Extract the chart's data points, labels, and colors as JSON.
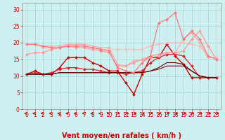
{
  "xlabel": "Vent moyen/en rafales ( km/h )",
  "background_color": "#cff0f0",
  "grid_color": "#a8d8d8",
  "x_ticks": [
    0,
    1,
    2,
    3,
    4,
    5,
    6,
    7,
    8,
    9,
    10,
    11,
    12,
    13,
    14,
    15,
    16,
    17,
    18,
    19,
    20,
    21,
    22,
    23
  ],
  "ylim": [
    0,
    32
  ],
  "xlim": [
    -0.5,
    23.5
  ],
  "yticks": [
    0,
    5,
    10,
    15,
    20,
    25,
    30
  ],
  "series": [
    {
      "x": [
        0,
        1,
        2,
        3,
        4,
        5,
        6,
        7,
        8,
        9,
        10,
        11,
        12,
        13,
        14,
        15,
        16,
        17,
        18,
        19,
        20,
        21,
        22,
        23
      ],
      "y": [
        10.5,
        11.5,
        10.5,
        10.5,
        12.5,
        15.5,
        15.5,
        15.5,
        14,
        13,
        11.5,
        11.5,
        8,
        4.5,
        10.5,
        15.5,
        15.5,
        19.5,
        16,
        13.5,
        9.5,
        9.5,
        9.5,
        9.5
      ],
      "color": "#cc0000",
      "marker": "D",
      "markersize": 2.0,
      "linewidth": 1.0
    },
    {
      "x": [
        0,
        1,
        2,
        3,
        4,
        5,
        6,
        7,
        8,
        9,
        10,
        11,
        12,
        13,
        14,
        15,
        16,
        17,
        18,
        19,
        20,
        21,
        22,
        23
      ],
      "y": [
        10.5,
        11,
        10.5,
        11,
        12,
        12.5,
        12.5,
        12,
        12,
        11.5,
        11,
        11,
        10.5,
        11,
        11.5,
        14,
        15.5,
        16.5,
        16.5,
        16,
        13,
        9.5,
        9.5,
        9.5
      ],
      "color": "#dd2222",
      "marker": "D",
      "markersize": 2.0,
      "linewidth": 0.9
    },
    {
      "x": [
        0,
        1,
        2,
        3,
        4,
        5,
        6,
        7,
        8,
        9,
        10,
        11,
        12,
        13,
        14,
        15,
        16,
        17,
        18,
        19,
        20,
        21,
        22,
        23
      ],
      "y": [
        10.5,
        10.5,
        10.5,
        10.5,
        11,
        11,
        11,
        11,
        11,
        11,
        11,
        11,
        11,
        11,
        11,
        11.5,
        12,
        13,
        13,
        13,
        11.5,
        10,
        9.5,
        9.5
      ],
      "color": "#880000",
      "marker": null,
      "markersize": 0,
      "linewidth": 0.8
    },
    {
      "x": [
        0,
        1,
        2,
        3,
        4,
        5,
        6,
        7,
        8,
        9,
        10,
        11,
        12,
        13,
        14,
        15,
        16,
        17,
        18,
        19,
        20,
        21,
        22,
        23
      ],
      "y": [
        10.5,
        10.5,
        10.5,
        10.5,
        11,
        11,
        11,
        11,
        11,
        11,
        11,
        11,
        11,
        11,
        11,
        11.5,
        12.5,
        14,
        14,
        13.5,
        11.5,
        10,
        9.5,
        9.5
      ],
      "color": "#660000",
      "marker": null,
      "markersize": 0,
      "linewidth": 0.8
    },
    {
      "x": [
        0,
        1,
        2,
        3,
        4,
        5,
        6,
        7,
        8,
        9,
        10,
        11,
        12,
        13,
        14,
        15,
        16,
        17,
        18,
        19,
        20,
        21,
        22,
        23
      ],
      "y": [
        19.5,
        19.5,
        19,
        19,
        19,
        19.5,
        19.5,
        19.5,
        19,
        18.5,
        18.5,
        13.5,
        13,
        14.5,
        15,
        15.5,
        16,
        17,
        17,
        21,
        23,
        20,
        15.5,
        15.5
      ],
      "color": "#ffaaaa",
      "marker": "D",
      "markersize": 2.0,
      "linewidth": 0.9
    },
    {
      "x": [
        0,
        1,
        2,
        3,
        4,
        5,
        6,
        7,
        8,
        9,
        10,
        11,
        12,
        13,
        14,
        15,
        16,
        17,
        18,
        19,
        20,
        21,
        22,
        23
      ],
      "y": [
        19.5,
        19.5,
        18.5,
        18.5,
        18.5,
        19,
        19,
        19,
        18.5,
        18,
        18,
        18,
        18,
        18,
        18,
        19,
        19.5,
        20,
        20,
        20,
        19.5,
        19,
        15.5,
        15.5
      ],
      "color": "#ffbbbb",
      "marker": "D",
      "markersize": 2.0,
      "linewidth": 0.9
    },
    {
      "x": [
        0,
        1,
        2,
        3,
        4,
        5,
        6,
        7,
        8,
        9,
        10,
        11,
        12,
        13,
        14,
        15,
        16,
        17,
        18,
        19,
        20,
        21,
        22,
        23
      ],
      "y": [
        16.5,
        17,
        17,
        18,
        18.5,
        19,
        18.5,
        18.5,
        18,
        17.5,
        17,
        13,
        13,
        14,
        15,
        16,
        16.5,
        17,
        17,
        17.5,
        21,
        23.5,
        19,
        15
      ],
      "color": "#ff9999",
      "marker": "D",
      "markersize": 2.0,
      "linewidth": 0.9
    },
    {
      "x": [
        0,
        1,
        2,
        3,
        4,
        5,
        6,
        7,
        8,
        9,
        10,
        11,
        12,
        13,
        14,
        15,
        16,
        17,
        18,
        19,
        20,
        21,
        22,
        23
      ],
      "y": [
        19.5,
        19.5,
        19,
        18.5,
        18.5,
        19,
        19,
        19,
        18.5,
        18,
        17.5,
        12.5,
        11.5,
        11,
        14,
        16,
        26,
        27,
        29,
        21,
        23.5,
        21,
        16,
        15
      ],
      "color": "#ff7777",
      "marker": "D",
      "markersize": 2.0,
      "linewidth": 0.9
    }
  ],
  "tick_color": "#cc0000",
  "label_color": "#cc0000",
  "tick_fontsize": 5.5,
  "xlabel_fontsize": 7.0,
  "arrow_color": "#cc0000"
}
